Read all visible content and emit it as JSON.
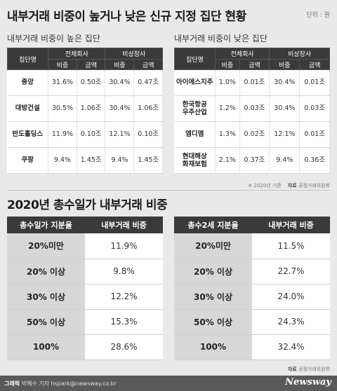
{
  "title": "내부거래 비중이 높거나 낮은 신규 지정 집단 현황",
  "unit": "단위 : 원",
  "high": {
    "subtitle": "내부거래 비중이 높은 집단",
    "headers": {
      "group": "집단명",
      "all": "전체회사",
      "unlisted": "비상장사",
      "ratio": "비중",
      "amount": "금액"
    },
    "rows": [
      {
        "name": "중앙",
        "r1": "31.6%",
        "a1": "0.50조",
        "r2": "30.4%",
        "a2": "0.47조"
      },
      {
        "name": "대방건설",
        "r1": "30.5%",
        "a1": "1.06조",
        "r2": "30.4%",
        "a2": "1.06조"
      },
      {
        "name": "반도홀딩스",
        "r1": "11.9%",
        "a1": "0.10조",
        "r2": "12.1%",
        "a2": "0.10조"
      },
      {
        "name": "쿠팡",
        "r1": "9.4%",
        "a1": "1.45조",
        "r2": "9.4%",
        "a2": "1.45조"
      }
    ]
  },
  "low": {
    "subtitle": "내부거래 비중이 낮은 집단",
    "headers": {
      "group": "집단명",
      "all": "전체회사",
      "unlisted": "비상장사",
      "ratio": "비중",
      "amount": "금액"
    },
    "rows": [
      {
        "name": "아이에스지주",
        "r1": "1.0%",
        "a1": "0.01조",
        "r2": "30.4%",
        "a2": "0.01조"
      },
      {
        "name": "한국항공\n우주산업",
        "r1": "1.2%",
        "a1": "0.03조",
        "r2": "30.4%",
        "a2": "0.03조"
      },
      {
        "name": "엠디엠",
        "r1": "1.3%",
        "a1": "0.02조",
        "r2": "12.1%",
        "a2": "0.01조"
      },
      {
        "name": "현대해상\n화재보험",
        "r1": "2.1%",
        "a1": "0.37조",
        "r2": "9.4%",
        "a2": "0.36조"
      }
    ]
  },
  "note_top": {
    "basis": "※ 2020년 기준",
    "source_label": "자료",
    "source": "공정거래위원회"
  },
  "section2_title": "2020년 총수일가 내부거래 비중",
  "family": {
    "header_label": "총수일가 지분율",
    "header_value": "내부거래 비중",
    "rows": [
      {
        "label": "20%미만",
        "value": "11.9%"
      },
      {
        "label": "20% 이상",
        "value": "9.8%"
      },
      {
        "label": "30% 이상",
        "value": "12.2%"
      },
      {
        "label": "50% 이상",
        "value": "15.3%"
      },
      {
        "label": "100%",
        "value": "28.6%"
      }
    ]
  },
  "gen2": {
    "header_label": "총수2세 지분율",
    "header_value": "내부거래 비중",
    "rows": [
      {
        "label": "20%미만",
        "value": "11.5%"
      },
      {
        "label": "20% 이상",
        "value": "22.7%"
      },
      {
        "label": "30% 이상",
        "value": "24.0%"
      },
      {
        "label": "50% 이상",
        "value": "24.3%"
      },
      {
        "label": "100%",
        "value": "32.4%"
      }
    ]
  },
  "note_bottom": {
    "source_label": "자료",
    "source": "공정거래위원회"
  },
  "footer": {
    "credit_label": "그래픽",
    "credit": "박혜수 기자 hspark@newsway.co.kr",
    "logo": "Newsway"
  }
}
